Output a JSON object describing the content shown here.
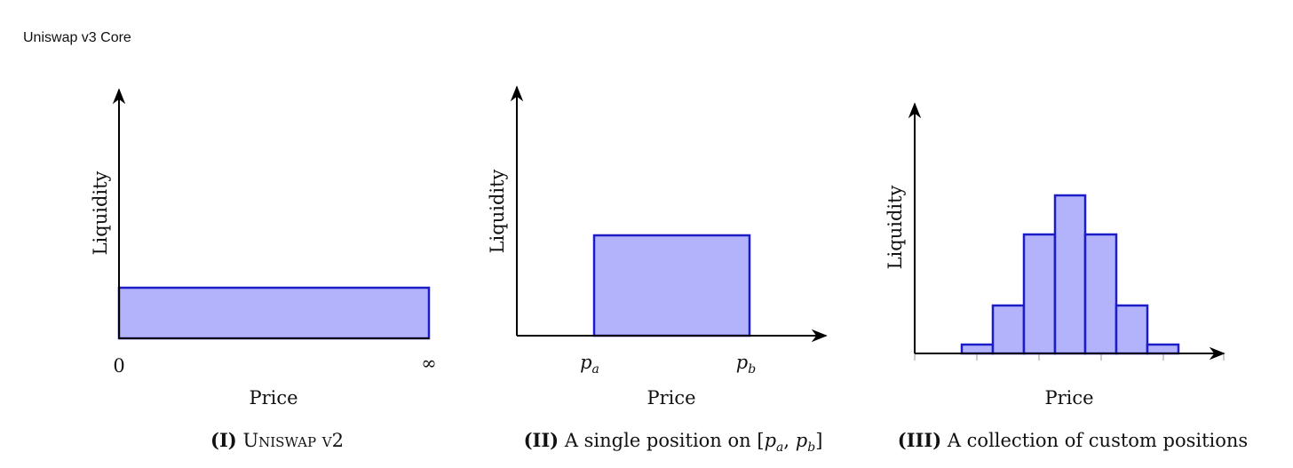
{
  "header": {
    "title": "Uniswap v3 Core"
  },
  "panels": [
    {
      "y_label": "Liquidity",
      "x_label": "Price",
      "ticks": [
        "0",
        "∞"
      ],
      "caption": {
        "label": "(I)",
        "text": "Uniswap v2"
      }
    },
    {
      "y_label": "Liquidity",
      "x_label": "Price",
      "ticks": [
        {
          "base": "p",
          "sub": "a"
        },
        {
          "base": "p",
          "sub": "b"
        }
      ],
      "caption": {
        "label": "(II)",
        "text": "A single position on",
        "open": "[",
        "sep": ",",
        "close": "]",
        "range": [
          {
            "base": "p",
            "sub": "a"
          },
          {
            "base": "p",
            "sub": "b"
          }
        ]
      }
    },
    {
      "y_label": "Liquidity",
      "x_label": "Price",
      "caption": {
        "label": "(III)",
        "text": "A collection of custom positions"
      }
    }
  ]
}
